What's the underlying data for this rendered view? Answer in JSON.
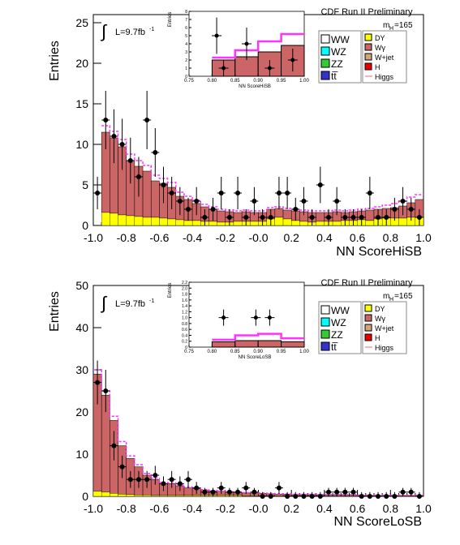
{
  "chart_data": [
    {
      "type": "bar",
      "id": "hisb",
      "experiment_label": "CDF Run II Preliminary",
      "lumi_label": "L=9.7fb",
      "lumi_sup": "-1",
      "mass_label_main": "m",
      "mass_label_sub": "H",
      "mass_label_val": "=165",
      "xlabel": "NN ScoreHiSB",
      "ylabel": "Entries",
      "xlim": [
        -1.0,
        1.0
      ],
      "ylim": [
        0,
        26
      ],
      "xticks": [
        "-1.0",
        "-0.8",
        "-0.6",
        "-0.4",
        "-0.2",
        "-0.0",
        "0.2",
        "0.4",
        "0.6",
        "0.8",
        "1.0"
      ],
      "yticks": [
        "0",
        "5",
        "10",
        "15",
        "20",
        "25"
      ],
      "bin_edges_start": -0.95,
      "bin_width": 0.05,
      "stack_bottom_dy": [
        1.6,
        1.5,
        1.3,
        1.2,
        1.1,
        1.0,
        1.0,
        0.9,
        0.8,
        0.7,
        0.6,
        0.6,
        0.5,
        0.5,
        0.4,
        0.4,
        0.5,
        0.5,
        0.5,
        0.5,
        0.8,
        1.0,
        0.8,
        0.6,
        0.5,
        0.4,
        0.5,
        0.5,
        0.5,
        0.6,
        0.6,
        0.7,
        0.6,
        0.8,
        0.9,
        0.9,
        0.9,
        1.0,
        1.0
      ],
      "stack_total": [
        11.5,
        10.8,
        9.7,
        8.0,
        7.3,
        6.7,
        5.5,
        5.2,
        4.7,
        3.6,
        3.2,
        2.7,
        2.3,
        2.0,
        1.8,
        1.7,
        1.6,
        1.7,
        1.6,
        1.6,
        2.0,
        2.1,
        1.9,
        1.8,
        1.7,
        1.6,
        1.6,
        1.6,
        1.7,
        1.6,
        1.7,
        1.8,
        1.9,
        2.0,
        2.1,
        2.2,
        2.4,
        2.8,
        3.2
      ],
      "signal_total": [
        12.3,
        11.6,
        10.6,
        8.8,
        8.0,
        7.4,
        6.2,
        5.8,
        5.3,
        4.1,
        3.6,
        3.1,
        2.6,
        2.3,
        2.0,
        1.9,
        1.8,
        1.9,
        1.8,
        1.8,
        2.2,
        2.3,
        2.1,
        2.0,
        1.9,
        1.8,
        1.8,
        1.8,
        1.9,
        1.8,
        1.9,
        2.0,
        2.1,
        2.3,
        2.5,
        2.7,
        3.0,
        3.5,
        3.8
      ],
      "data_x": [
        -0.975,
        -0.925,
        -0.875,
        -0.825,
        -0.775,
        -0.725,
        -0.675,
        -0.625,
        -0.575,
        -0.525,
        -0.475,
        -0.425,
        -0.375,
        -0.325,
        -0.275,
        -0.225,
        -0.175,
        -0.125,
        -0.075,
        -0.025,
        0.025,
        0.075,
        0.125,
        0.175,
        0.225,
        0.275,
        0.325,
        0.375,
        0.425,
        0.475,
        0.525,
        0.575,
        0.625,
        0.675,
        0.725,
        0.775,
        0.825,
        0.875,
        0.925,
        0.975
      ],
      "data_y": [
        4,
        13,
        11,
        10,
        8,
        6,
        13,
        9,
        5,
        4,
        3,
        2,
        3,
        1,
        2,
        4,
        1,
        4,
        1,
        3,
        1,
        1,
        4,
        4,
        2,
        3,
        1,
        5,
        1,
        3,
        1,
        1,
        1,
        4,
        1,
        1,
        2,
        3,
        2,
        1
      ],
      "inset": {
        "xlabel": "NN ScoreHiSB",
        "ylabel": "Entries",
        "xlim": [
          0.75,
          1.0
        ],
        "ylim": [
          0,
          8
        ],
        "xticks": [
          "0.75",
          "0.80",
          "0.85",
          "0.90",
          "0.95",
          "1.00"
        ],
        "yticks": [
          "0",
          "1",
          "2",
          "3",
          "4",
          "5",
          "6",
          "7",
          "8"
        ],
        "bin_edges": [
          0.8,
          0.85,
          0.9,
          0.95,
          1.0
        ],
        "stack_total": [
          2.0,
          2.4,
          3.0,
          3.8
        ],
        "signal_total": [
          2.3,
          3.2,
          4.3,
          5.2
        ],
        "data_x": [
          0.81,
          0.825,
          0.875,
          0.925,
          0.975
        ],
        "data_y": [
          5,
          1,
          4,
          1,
          2
        ]
      }
    },
    {
      "type": "bar",
      "id": "losb",
      "experiment_label": "CDF Run II Preliminary",
      "lumi_label": "L=9.7fb",
      "lumi_sup": "-1",
      "mass_label_main": "m",
      "mass_label_sub": "H",
      "mass_label_val": "=165",
      "xlabel": "NN ScoreLoSB",
      "ylabel": "Entries",
      "xlim": [
        -1.0,
        1.0
      ],
      "ylim": [
        0,
        50
      ],
      "xticks": [
        "-1.0",
        "-0.8",
        "-0.6",
        "-0.4",
        "-0.2",
        "-0.0",
        "0.2",
        "0.4",
        "0.6",
        "0.8",
        "1.0"
      ],
      "yticks": [
        "0",
        "10",
        "20",
        "30",
        "40",
        "50"
      ],
      "bin_edges_start": -1.0,
      "bin_width": 0.05,
      "stack_bottom_dy": [
        1.2,
        1.0,
        0.7,
        0.5,
        0.4,
        0.3,
        0.3,
        0.2,
        0.2,
        0.2,
        0.2,
        0.2,
        0.2,
        0.2,
        0.2,
        0.2,
        0.2,
        0.2,
        0.1,
        0.1,
        0.1,
        0.1,
        0.1,
        0.1,
        0.1,
        0.1,
        0.1,
        0.1,
        0.1,
        0.1,
        0.1,
        0.1,
        0.1,
        0.1,
        0.1,
        0.1,
        0.1,
        0.1,
        0.1,
        0.1
      ],
      "stack_total": [
        29,
        24,
        18,
        12,
        9,
        7,
        5,
        4,
        3,
        3,
        2.5,
        2,
        1.8,
        1.5,
        1.3,
        1.2,
        1.0,
        0.9,
        0.8,
        0.8,
        0.7,
        0.6,
        0.5,
        0.5,
        0.4,
        0.4,
        0.4,
        0.3,
        0.3,
        0.3,
        0.3,
        0.3,
        0.2,
        0.2,
        0.2,
        0.2,
        0.2,
        0.2,
        0.2,
        0.2
      ],
      "signal_total": [
        30,
        25,
        19,
        13,
        9.6,
        7.5,
        5.4,
        4.3,
        3.3,
        3.2,
        2.7,
        2.2,
        2.0,
        1.6,
        1.4,
        1.3,
        1.1,
        1.0,
        0.9,
        0.9,
        0.8,
        0.7,
        0.6,
        0.6,
        0.5,
        0.5,
        0.5,
        0.4,
        0.4,
        0.4,
        0.4,
        0.4,
        0.3,
        0.3,
        0.3,
        0.3,
        0.3,
        0.3,
        0.3,
        0.3
      ],
      "data_x": [
        -0.975,
        -0.925,
        -0.875,
        -0.825,
        -0.775,
        -0.725,
        -0.675,
        -0.625,
        -0.575,
        -0.525,
        -0.475,
        -0.425,
        -0.375,
        -0.325,
        -0.275,
        -0.225,
        -0.175,
        -0.125,
        -0.075,
        -0.025,
        0.025,
        0.075,
        0.125,
        0.175,
        0.225,
        0.275,
        0.325,
        0.375,
        0.425,
        0.475,
        0.525,
        0.575,
        0.625,
        0.675,
        0.725,
        0.775,
        0.825,
        0.875,
        0.925,
        0.975
      ],
      "data_y": [
        27,
        25,
        12,
        7,
        4,
        4,
        4,
        5,
        3,
        4,
        3,
        4,
        2,
        1,
        1,
        2,
        1,
        1,
        2,
        1,
        0,
        0,
        2,
        0,
        0,
        0,
        0,
        0,
        1,
        1,
        1,
        1,
        0,
        0,
        0,
        0,
        0,
        1,
        1,
        0
      ],
      "inset": {
        "xlabel": "NN ScoreLoSB",
        "ylabel": "Entries",
        "xlim": [
          0.75,
          1.0
        ],
        "ylim": [
          0,
          2.2
        ],
        "xticks": [
          "0.75",
          "0.80",
          "0.85",
          "0.90",
          "0.95",
          "1.00"
        ],
        "yticks": [
          "0",
          "0.2",
          "0.4",
          "0.6",
          "0.8",
          "1.0",
          "1.2",
          "1.4",
          "1.6",
          "1.8",
          "2.0",
          "2.2"
        ],
        "bin_edges": [
          0.8,
          0.85,
          0.9,
          0.95,
          1.0
        ],
        "stack_total": [
          0.18,
          0.22,
          0.22,
          0.18
        ],
        "signal_total": [
          0.25,
          0.4,
          0.45,
          0.3
        ],
        "data_x": [
          0.825,
          0.895,
          0.925
        ],
        "data_y": [
          1.0,
          1.0,
          1.0
        ]
      }
    }
  ],
  "legend": {
    "left_entries": [
      {
        "label": "WW",
        "color": "#ffffff"
      },
      {
        "label": "WZ",
        "color": "#00ffff"
      },
      {
        "label": "ZZ",
        "color": "#33cc33"
      },
      {
        "label": "tt̅",
        "color": "#3333cc"
      }
    ],
    "right_entries": [
      {
        "label": "DY",
        "color": "#ffff00"
      },
      {
        "label": "Wγ",
        "color": "#cc6666"
      },
      {
        "label": "W+jet",
        "color": "#d2a679"
      },
      {
        "label": "H",
        "color": "#ee0000"
      },
      {
        "label": "Higgs",
        "color": "#ff9999"
      }
    ]
  },
  "colors": {
    "stack_fill": "#cc6666",
    "dy_fill": "#ffff00",
    "signal": "#ff33ff",
    "data": "#000000"
  }
}
